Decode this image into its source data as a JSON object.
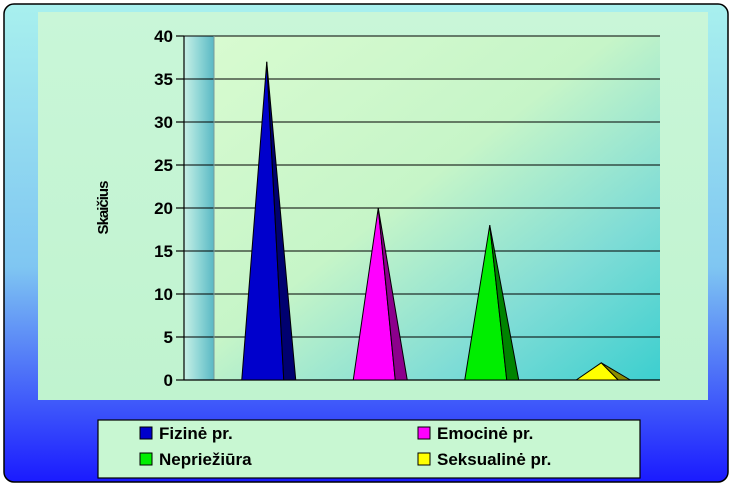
{
  "chart_data": {
    "type": "bar",
    "title": "",
    "xlabel": "",
    "ylabel": "Skaičius",
    "ylim": [
      0,
      40
    ],
    "yticks": [
      0,
      5,
      10,
      15,
      20,
      25,
      30,
      35,
      40
    ],
    "grid": true,
    "bar_shape": "pyramid",
    "legend_position": "bottom",
    "series": [
      {
        "name": "Fizinė pr.",
        "value": 37,
        "color": "#0000cc"
      },
      {
        "name": "Emocinė pr.",
        "value": 20,
        "color": "#ff00ff"
      },
      {
        "name": "Nepriežiūra",
        "value": 18,
        "color": "#00ee00"
      },
      {
        "name": "Seksualinė pr.",
        "value": 2,
        "color": "#ffff00"
      }
    ]
  }
}
